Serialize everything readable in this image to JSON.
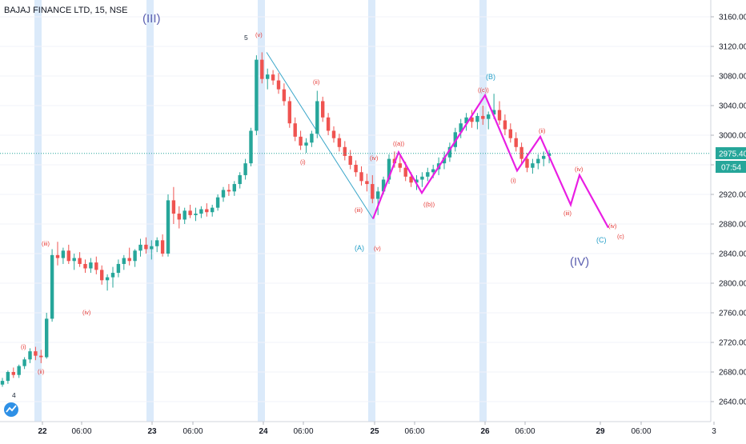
{
  "symbol": {
    "title": "BAJAJ FINANCE LTD, 15, NSE"
  },
  "colors": {
    "up": "#26a69a",
    "down": "#ef5350",
    "projection": "#e91ee3",
    "trendline": "#3aa6c9",
    "session_band": "#cfe3f8",
    "price_line": "#26a69a",
    "axis_text": "#131722",
    "grid": "#f0f3fa"
  },
  "price_axis": {
    "ticks": [
      "3160.00",
      "3120.00",
      "3080.00",
      "3040.00",
      "3000.00",
      "2960.00",
      "2920.00",
      "2880.00",
      "2840.00",
      "2800.00",
      "2760.00",
      "2720.00",
      "2680.00",
      "2640.00"
    ],
    "current_price": "2975.40",
    "countdown": "07:54",
    "hidden_label": "29"
  },
  "time_axis": {
    "ticks": [
      {
        "label": "22",
        "bold": true
      },
      {
        "label": "06:00",
        "bold": false
      },
      {
        "label": "23",
        "bold": true
      },
      {
        "label": "06:00",
        "bold": false
      },
      {
        "label": "24",
        "bold": true
      },
      {
        "label": "06:00",
        "bold": false
      },
      {
        "label": "25",
        "bold": true
      },
      {
        "label": "06:00",
        "bold": false
      },
      {
        "label": "26",
        "bold": true
      },
      {
        "label": "06:00",
        "bold": false
      },
      {
        "label": "29",
        "bold": true
      },
      {
        "label": "06:00",
        "bold": false
      },
      {
        "label": "3",
        "bold": false
      }
    ]
  },
  "chart_data": {
    "type": "candlestick",
    "title": "BAJAJ FINANCE LTD, 15, NSE",
    "ylim": [
      2620,
      3180
    ],
    "y_unit": "INR",
    "candles": [
      [
        2663,
        2672,
        2660,
        2668
      ],
      [
        2668,
        2682,
        2664,
        2680
      ],
      [
        2680,
        2686,
        2672,
        2676
      ],
      [
        2676,
        2690,
        2672,
        2688
      ],
      [
        2688,
        2700,
        2684,
        2697
      ],
      [
        2697,
        2712,
        2692,
        2708
      ],
      [
        2708,
        2714,
        2696,
        2702
      ],
      [
        2702,
        2710,
        2692,
        2700
      ],
      [
        2700,
        2760,
        2698,
        2752
      ],
      [
        2752,
        2846,
        2748,
        2838
      ],
      [
        2838,
        2856,
        2824,
        2834
      ],
      [
        2834,
        2848,
        2826,
        2844
      ],
      [
        2844,
        2852,
        2826,
        2830
      ],
      [
        2830,
        2840,
        2818,
        2834
      ],
      [
        2834,
        2842,
        2822,
        2826
      ],
      [
        2826,
        2832,
        2814,
        2820
      ],
      [
        2820,
        2834,
        2814,
        2828
      ],
      [
        2828,
        2836,
        2812,
        2818
      ],
      [
        2818,
        2824,
        2798,
        2804
      ],
      [
        2804,
        2812,
        2790,
        2808
      ],
      [
        2808,
        2822,
        2794,
        2814
      ],
      [
        2814,
        2832,
        2808,
        2826
      ],
      [
        2826,
        2838,
        2818,
        2834
      ],
      [
        2834,
        2848,
        2824,
        2830
      ],
      [
        2830,
        2846,
        2822,
        2844
      ],
      [
        2844,
        2860,
        2836,
        2852
      ],
      [
        2852,
        2862,
        2840,
        2846
      ],
      [
        2846,
        2858,
        2832,
        2850
      ],
      [
        2850,
        2862,
        2842,
        2858
      ],
      [
        2858,
        2866,
        2836,
        2840
      ],
      [
        2840,
        2920,
        2836,
        2912
      ],
      [
        2912,
        2930,
        2880,
        2894
      ],
      [
        2894,
        2904,
        2874,
        2886
      ],
      [
        2886,
        2902,
        2880,
        2898
      ],
      [
        2898,
        2906,
        2888,
        2892
      ],
      [
        2892,
        2902,
        2884,
        2894
      ],
      [
        2894,
        2904,
        2888,
        2900
      ],
      [
        2900,
        2908,
        2890,
        2896
      ],
      [
        2896,
        2906,
        2890,
        2902
      ],
      [
        2902,
        2920,
        2898,
        2916
      ],
      [
        2916,
        2930,
        2910,
        2926
      ],
      [
        2926,
        2934,
        2918,
        2924
      ],
      [
        2924,
        2938,
        2918,
        2934
      ],
      [
        2934,
        2950,
        2928,
        2946
      ],
      [
        2946,
        2968,
        2940,
        2962
      ],
      [
        2962,
        3010,
        2958,
        3006
      ],
      [
        3006,
        3108,
        3000,
        3102
      ],
      [
        3102,
        3112,
        3070,
        3076
      ],
      [
        3076,
        3090,
        3062,
        3082
      ],
      [
        3082,
        3088,
        3068,
        3074
      ],
      [
        3074,
        3084,
        3056,
        3062
      ],
      [
        3062,
        3070,
        3040,
        3046
      ],
      [
        3046,
        3052,
        3010,
        3016
      ],
      [
        3016,
        3024,
        2992,
        2998
      ],
      [
        2998,
        3006,
        2980,
        2986
      ],
      [
        2986,
        2996,
        2976,
        2990
      ],
      [
        2990,
        3006,
        2984,
        3002
      ],
      [
        3002,
        3060,
        2996,
        3046
      ],
      [
        3046,
        3052,
        3018,
        3024
      ],
      [
        3024,
        3030,
        3000,
        3006
      ],
      [
        3006,
        3012,
        2990,
        2996
      ],
      [
        2996,
        3002,
        2978,
        2984
      ],
      [
        2984,
        2992,
        2966,
        2972
      ],
      [
        2972,
        2980,
        2954,
        2960
      ],
      [
        2960,
        2966,
        2944,
        2950
      ],
      [
        2950,
        2958,
        2932,
        2938
      ],
      [
        2938,
        2948,
        2924,
        2934
      ],
      [
        2934,
        2946,
        2908,
        2914
      ],
      [
        2914,
        2930,
        2892,
        2924
      ],
      [
        2924,
        2944,
        2920,
        2940
      ],
      [
        2940,
        2974,
        2934,
        2968
      ],
      [
        2968,
        2978,
        2956,
        2962
      ],
      [
        2962,
        2972,
        2950,
        2956
      ],
      [
        2956,
        2964,
        2938,
        2944
      ],
      [
        2944,
        2950,
        2930,
        2936
      ],
      [
        2936,
        2946,
        2926,
        2940
      ],
      [
        2940,
        2950,
        2930,
        2944
      ],
      [
        2944,
        2956,
        2938,
        2950
      ],
      [
        2950,
        2960,
        2942,
        2954
      ],
      [
        2954,
        2970,
        2946,
        2962
      ],
      [
        2962,
        2978,
        2954,
        2970
      ],
      [
        2970,
        2990,
        2964,
        2984
      ],
      [
        2984,
        3010,
        2978,
        3004
      ],
      [
        3004,
        3022,
        2996,
        3016
      ],
      [
        3016,
        3030,
        3006,
        3024
      ],
      [
        3024,
        3034,
        3010,
        3018
      ],
      [
        3018,
        3030,
        3008,
        3026
      ],
      [
        3026,
        3040,
        3014,
        3022
      ],
      [
        3022,
        3032,
        3008,
        3028
      ],
      [
        3028,
        3056,
        3022,
        3034
      ],
      [
        3034,
        3046,
        3014,
        3020
      ],
      [
        3020,
        3028,
        3000,
        3008
      ],
      [
        3008,
        3016,
        2990,
        2996
      ],
      [
        2996,
        3004,
        2978,
        2984
      ],
      [
        2984,
        2990,
        2962,
        2968
      ],
      [
        2968,
        2976,
        2950,
        2956
      ],
      [
        2956,
        2968,
        2948,
        2962
      ],
      [
        2962,
        2974,
        2954,
        2968
      ],
      [
        2968,
        2978,
        2958,
        2972
      ],
      [
        2972,
        2980,
        2962,
        2975.4
      ]
    ],
    "projection": {
      "points": [
        {
          "label": "(A)",
          "price": 2887
        },
        {
          "label": "((a))",
          "price": 2977
        },
        {
          "label": "((b))",
          "price": 2922
        },
        {
          "label": "((c)) (B)",
          "price": 3054
        },
        {
          "label": "(i)",
          "price": 2952
        },
        {
          "label": "(ii)",
          "price": 2998
        },
        {
          "label": "(iii)",
          "price": 2906
        },
        {
          "label": "(iv)",
          "price": 2946
        },
        {
          "label": "(v) (C)",
          "price": 2875
        }
      ]
    },
    "trendline": {
      "from_price": 3112,
      "to_price": 2887
    },
    "wave_labels": [
      {
        "text": "(III)",
        "degree": "primary"
      },
      {
        "text": "(IV)",
        "degree": "primary"
      },
      {
        "text": "5",
        "degree": "minor"
      },
      {
        "text": "(A)",
        "degree": "intermediate"
      },
      {
        "text": "(B)",
        "degree": "intermediate"
      },
      {
        "text": "(C)",
        "degree": "intermediate"
      },
      {
        "text": "(i)",
        "degree": "minute"
      },
      {
        "text": "(ii)",
        "degree": "minute"
      },
      {
        "text": "(iii)",
        "degree": "minute"
      },
      {
        "text": "(iv)",
        "degree": "minute"
      },
      {
        "text": "(v)",
        "degree": "minute"
      },
      {
        "text": "((a))",
        "degree": "minute"
      },
      {
        "text": "((b))",
        "degree": "minute"
      },
      {
        "text": "((c))",
        "degree": "minute"
      },
      {
        "text": "(c)",
        "degree": "minute"
      },
      {
        "text": "4",
        "degree": "minor"
      }
    ]
  }
}
